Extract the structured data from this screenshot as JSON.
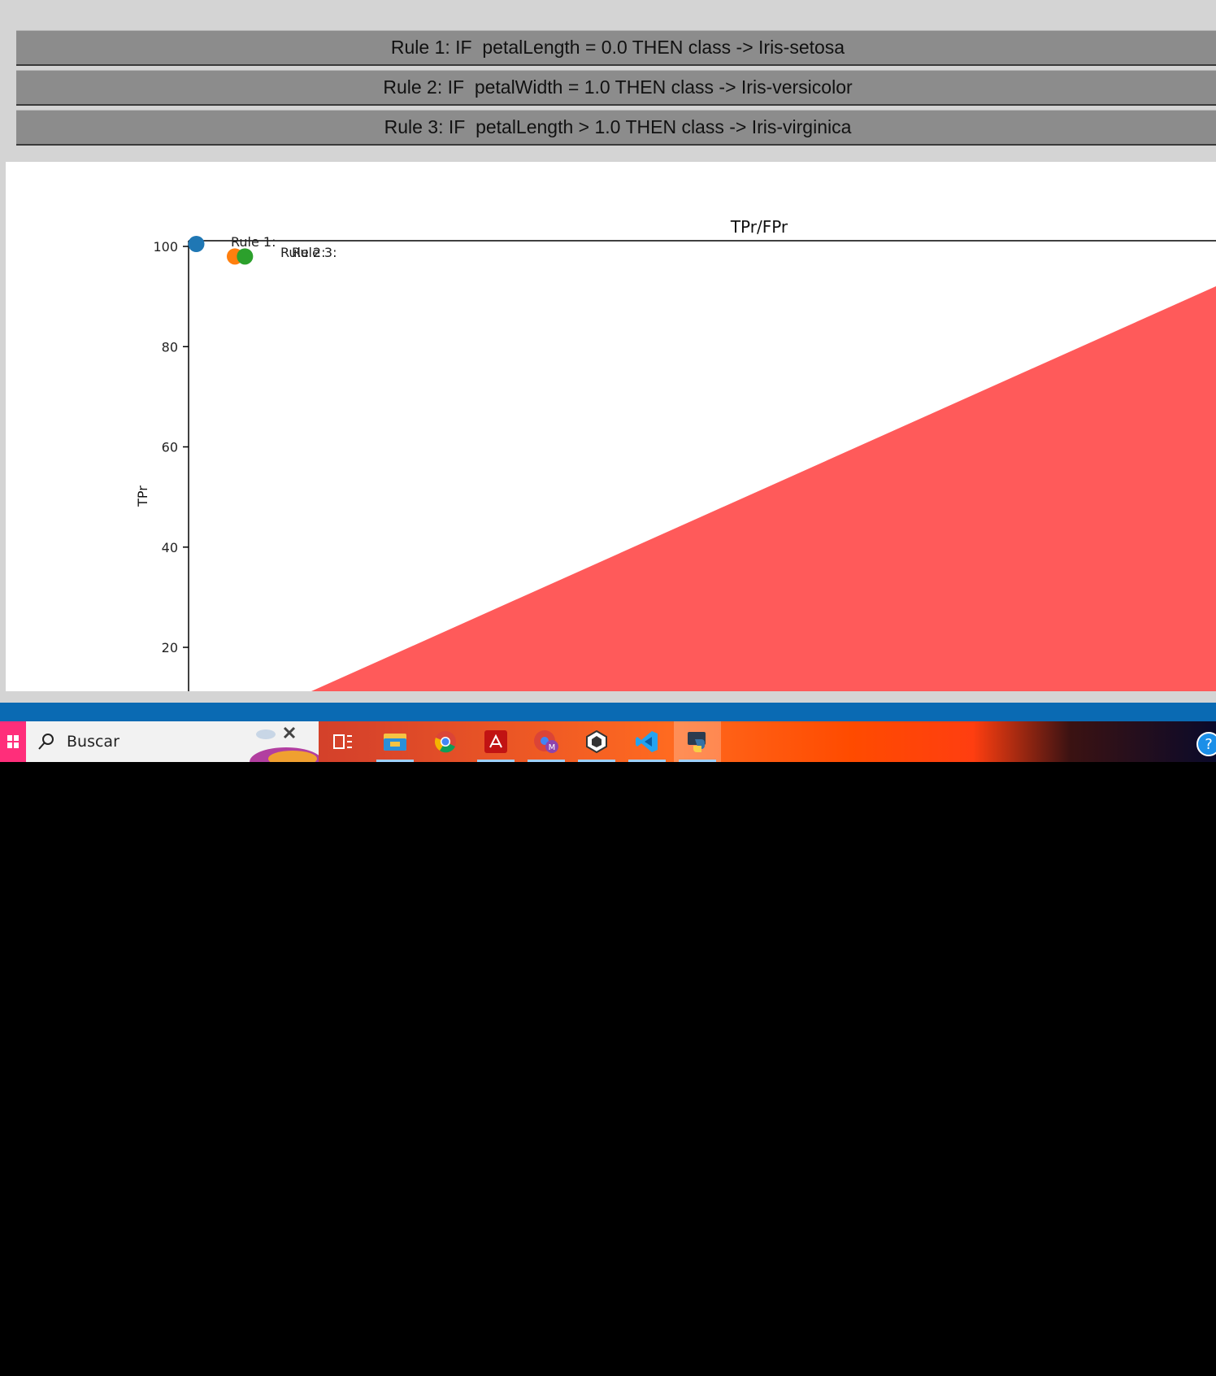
{
  "rules": [
    {
      "label": "Rule 1: IF  petalLength = 0.0 THEN class -> Iris-setosa"
    },
    {
      "label": "Rule 2: IF  petalWidth = 1.0 THEN class -> Iris-versicolor"
    },
    {
      "label": "Rule 3: IF  petalLength > 1.0 THEN class -> Iris-virginica"
    }
  ],
  "chart_data": {
    "type": "scatter",
    "title": "TPr/FPr",
    "ylabel": "TPr",
    "xlabel": "",
    "y_ticks": [
      100,
      80,
      60,
      40,
      20
    ],
    "series": [
      {
        "name": "Rule 1:",
        "color": "#1f77b4",
        "points": [
          {
            "x": 1.0,
            "y": 100
          }
        ]
      },
      {
        "name": "Rule 2:",
        "color": "#ff7f0e",
        "points": [
          {
            "x": 6.0,
            "y": 98
          }
        ]
      },
      {
        "name": "Rule 3:",
        "color": "#2ca02c",
        "points": [
          {
            "x": 7.3,
            "y": 98
          }
        ]
      }
    ],
    "area_color": "#ff5a5a",
    "grid": false
  },
  "taskbar": {
    "search_placeholder": "Buscar",
    "icons": [
      "start-icon",
      "task-view-icon",
      "file-explorer-icon",
      "chrome-icon",
      "acrobat-icon",
      "chrome-profile-icon",
      "unity-icon",
      "vscode-icon",
      "python-icon",
      "help-icon"
    ],
    "help_symbol": "?"
  }
}
